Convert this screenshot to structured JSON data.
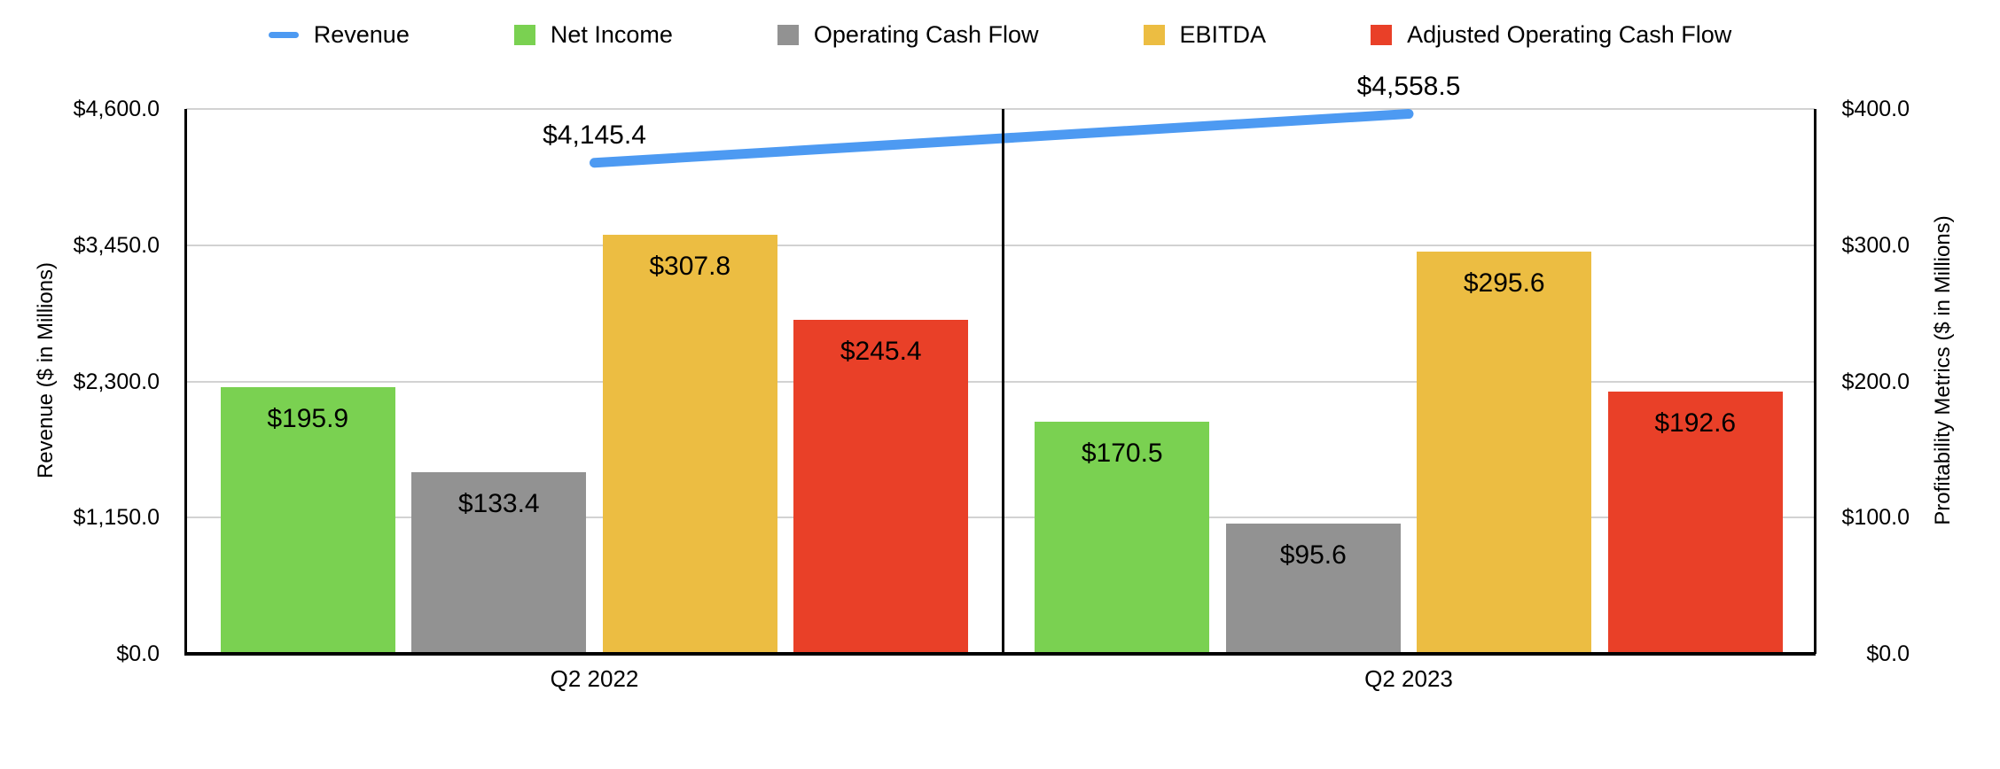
{
  "legend": {
    "items": [
      {
        "label": "Revenue",
        "marker": "line",
        "color": "#4d9af2"
      },
      {
        "label": "Net Income",
        "marker": "square",
        "color": "#7ad151"
      },
      {
        "label": "Operating Cash Flow",
        "marker": "square",
        "color": "#929292"
      },
      {
        "label": "EBITDA",
        "marker": "square",
        "color": "#ecbd42"
      },
      {
        "label": "Adjusted Operating Cash Flow",
        "marker": "square",
        "color": "#e94028"
      }
    ]
  },
  "chart_data": {
    "type": "bar-line-combo",
    "categories": [
      "Q2 2022",
      "Q2 2023"
    ],
    "bar_series": [
      {
        "name": "Net Income",
        "color": "#7ad151",
        "values": [
          195.9,
          170.5
        ],
        "labels": [
          "$195.9",
          "$170.5"
        ]
      },
      {
        "name": "Operating Cash Flow",
        "color": "#929292",
        "values": [
          133.4,
          95.6
        ],
        "labels": [
          "$133.4",
          "$95.6"
        ]
      },
      {
        "name": "EBITDA",
        "color": "#ecbd42",
        "values": [
          307.8,
          295.6
        ],
        "labels": [
          "$307.8",
          "$295.6"
        ]
      },
      {
        "name": "Adjusted Operating Cash Flow",
        "color": "#e94028",
        "values": [
          245.4,
          192.6
        ],
        "labels": [
          "$245.4",
          "$192.6"
        ]
      }
    ],
    "line_series": {
      "name": "Revenue",
      "color": "#4d9af2",
      "values": [
        4145.4,
        4558.5
      ],
      "labels": [
        "$4,145.4",
        "$4,558.5"
      ]
    },
    "left_axis": {
      "title": "Revenue ($ in Millions)",
      "min": 0,
      "max": 4600,
      "tick_values": [
        0,
        1150,
        2300,
        3450,
        4600
      ],
      "tick_labels": [
        "$0.0",
        "$1,150.0",
        "$2,300.0",
        "$3,450.0",
        "$4,600.0"
      ]
    },
    "right_axis": {
      "title": "Profitability Metrics ($ in Millions)",
      "min": 0,
      "max": 400,
      "tick_values": [
        0,
        100,
        200,
        300,
        400
      ],
      "tick_labels": [
        "$0.0",
        "$100.0",
        "$200.0",
        "$300.0",
        "$400.0"
      ]
    },
    "grid": true,
    "legend_position": "top",
    "colors": {
      "grid": "#d2d2d2",
      "axis": "#000000",
      "background": "#ffffff",
      "text": "#000000"
    }
  }
}
